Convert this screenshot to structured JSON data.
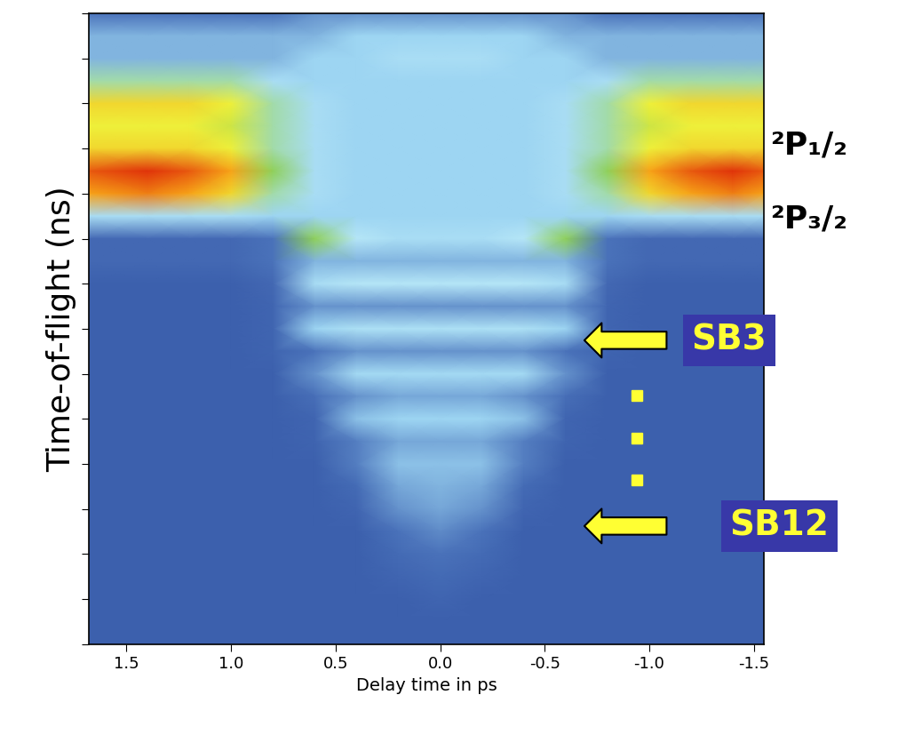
{
  "chart_data": {
    "type": "heatmap",
    "x_label": "Delay time in ps",
    "y_label": "Time-of-flight (ns)",
    "annotations": [
      "²P₁/₂",
      "²P₃/₂",
      "SB3",
      "SB12"
    ],
    "xlim": [
      1.68,
      -1.55
    ],
    "xticks": [
      1.5,
      1.0,
      0.5,
      0.0,
      -0.5,
      -1.0,
      -1.5
    ],
    "ylim": [
      0,
      14
    ],
    "yticks": [
      0,
      1,
      2,
      3,
      4,
      5,
      6,
      7,
      8,
      9,
      10,
      11,
      12,
      13,
      14
    ],
    "tick_labels": "x",
    "zlim": [
      0,
      10
    ],
    "x": [
      1.68,
      1.4,
      1.2,
      1.0,
      0.8,
      0.6,
      0.4,
      0.2,
      0.0,
      -0.2,
      -0.4,
      -0.6,
      -0.8,
      -1.0,
      -1.2,
      -1.4,
      -1.55
    ],
    "y": [
      14.0,
      13.5,
      13.0,
      12.5,
      12.0,
      11.5,
      11.0,
      10.5,
      10.0,
      9.5,
      9.0,
      8.5,
      8.0,
      7.5,
      7.0,
      6.5,
      6.0,
      5.5,
      5.0,
      4.5,
      4.0,
      3.5,
      3.0,
      2.5,
      2.0,
      1.5,
      1.0,
      0.5
    ],
    "values": [
      [
        1,
        1,
        1,
        1,
        1,
        1.5,
        1.5,
        1.5,
        1.5,
        1.5,
        1.5,
        1.5,
        1,
        1,
        1,
        1,
        1
      ],
      [
        2,
        2,
        2,
        2,
        2,
        2,
        2.5,
        2.5,
        2.5,
        2.5,
        2.5,
        2,
        2,
        2,
        2,
        2,
        2
      ],
      [
        2,
        2,
        2,
        2,
        2,
        2.5,
        2.5,
        3,
        3,
        3,
        2.5,
        2.5,
        2,
        2,
        2,
        2,
        2
      ],
      [
        4,
        4,
        4,
        4,
        3,
        2.5,
        2.5,
        2.5,
        2.5,
        2.5,
        2.5,
        2.5,
        3,
        4,
        4,
        4,
        4
      ],
      [
        6.5,
        6.5,
        6.5,
        6,
        4,
        3,
        2.5,
        2.5,
        2.5,
        2.5,
        2.5,
        3,
        4,
        6,
        6.5,
        6.5,
        6.5
      ],
      [
        6,
        6,
        6,
        5.5,
        4,
        3,
        2.5,
        2.5,
        2.5,
        2.5,
        2.5,
        3,
        4,
        5.5,
        6,
        6,
        6
      ],
      [
        6.5,
        6.5,
        6.5,
        6,
        4,
        3,
        2.5,
        2.5,
        2.5,
        2.5,
        2.5,
        3,
        4,
        6,
        6.5,
        6.5,
        6.5
      ],
      [
        8.5,
        9,
        8.5,
        7.5,
        4.5,
        3,
        2.5,
        2.5,
        2.5,
        2.5,
        2.5,
        3,
        4.5,
        7.5,
        8.5,
        9,
        8.5
      ],
      [
        7.5,
        8,
        7.5,
        6.5,
        4,
        3,
        2.5,
        2.5,
        2.5,
        2.5,
        2.5,
        3,
        4,
        6.5,
        7.5,
        8,
        7.5
      ],
      [
        3,
        3,
        3,
        3,
        2.5,
        2.5,
        2.5,
        2.5,
        2.5,
        2.5,
        2.5,
        2.5,
        2.5,
        3,
        3,
        3,
        3
      ],
      [
        0.5,
        0.5,
        0.5,
        0.5,
        1,
        4.5,
        3.5,
        3,
        3,
        3,
        3.5,
        4.5,
        1,
        0.5,
        0.5,
        0.5,
        0.5
      ],
      [
        0.5,
        0.5,
        0.5,
        0.5,
        1,
        2,
        2,
        2,
        2,
        2,
        2,
        2,
        1,
        0.5,
        0.5,
        0.5,
        0.5
      ],
      [
        0,
        0,
        0,
        0,
        0.5,
        3,
        3.5,
        3.5,
        3.5,
        3.5,
        3.5,
        3,
        0.5,
        0,
        0,
        0,
        0
      ],
      [
        0,
        0,
        0,
        0,
        0.3,
        1.5,
        1.5,
        1.5,
        1.5,
        1.5,
        1.5,
        1.5,
        0.3,
        0,
        0,
        0,
        0
      ],
      [
        0,
        0,
        0,
        0,
        0.3,
        2.5,
        3.2,
        3.2,
        3.2,
        3.2,
        3.2,
        2.5,
        0.3,
        0,
        0,
        0,
        0
      ],
      [
        0,
        0,
        0,
        0,
        0.2,
        1,
        1.5,
        1.5,
        1.5,
        1.5,
        1.5,
        1,
        0.2,
        0,
        0,
        0,
        0
      ],
      [
        0,
        0,
        0,
        0,
        0,
        1.5,
        2.8,
        2.8,
        2.8,
        2.8,
        2.8,
        1.5,
        0,
        0,
        0,
        0,
        0
      ],
      [
        0,
        0,
        0,
        0,
        0,
        0.8,
        1.5,
        1.8,
        1.8,
        1.8,
        1.5,
        0.8,
        0,
        0,
        0,
        0,
        0
      ],
      [
        0,
        0,
        0,
        0,
        0,
        0.3,
        2.2,
        2.5,
        2.5,
        2.5,
        2.2,
        0.3,
        0,
        0,
        0,
        0,
        0
      ],
      [
        0,
        0,
        0,
        0,
        0,
        0.2,
        1.2,
        1.8,
        1.8,
        1.8,
        1.2,
        0.2,
        0,
        0,
        0,
        0,
        0
      ],
      [
        0,
        0,
        0,
        0,
        0,
        0,
        1.2,
        2.2,
        2.2,
        2.2,
        1.2,
        0,
        0,
        0,
        0,
        0,
        0
      ],
      [
        0,
        0,
        0,
        0,
        0,
        0,
        0.6,
        1.8,
        2,
        1.8,
        0.6,
        0,
        0,
        0,
        0,
        0,
        0
      ],
      [
        0,
        0,
        0,
        0,
        0,
        0,
        0.3,
        1.5,
        1.8,
        1.5,
        0.3,
        0,
        0,
        0,
        0,
        0,
        0
      ],
      [
        0,
        0,
        0,
        0,
        0,
        0,
        0,
        1,
        1.4,
        1,
        0,
        0,
        0,
        0,
        0,
        0,
        0
      ],
      [
        0,
        0,
        0,
        0,
        0,
        0,
        0,
        0.6,
        1,
        0.6,
        0,
        0,
        0,
        0,
        0,
        0,
        0
      ],
      [
        0,
        0,
        0,
        0,
        0,
        0,
        0,
        0.3,
        0.6,
        0.3,
        0,
        0,
        0,
        0,
        0,
        0,
        0
      ],
      [
        0,
        0,
        0,
        0,
        0,
        0,
        0,
        0,
        0.3,
        0,
        0,
        0,
        0,
        0,
        0,
        0,
        0
      ],
      [
        0,
        0,
        0,
        0,
        0,
        0,
        0,
        0,
        0,
        0,
        0,
        0,
        0,
        0,
        0,
        0,
        0
      ]
    ]
  }
}
